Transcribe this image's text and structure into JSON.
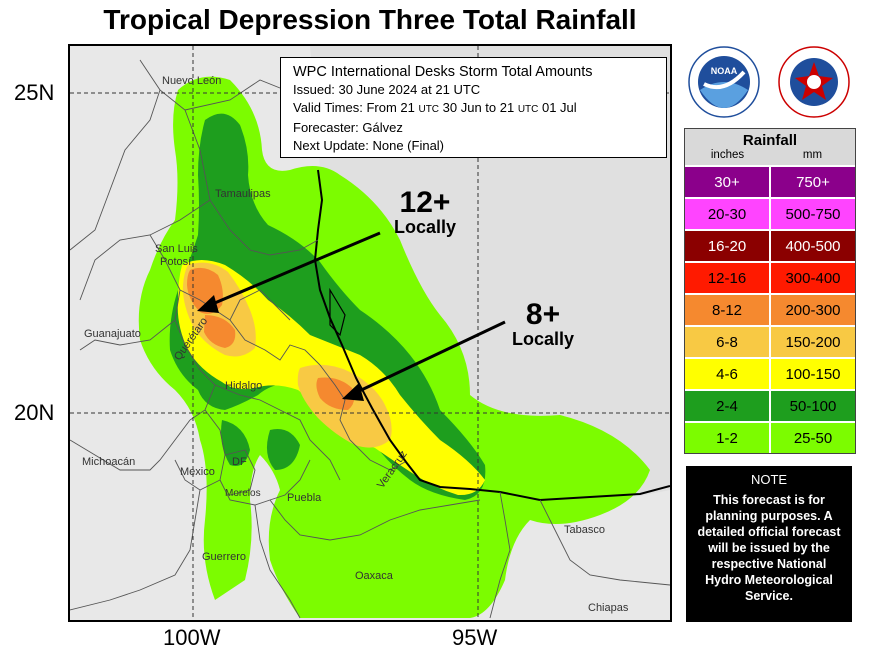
{
  "title": "Tropical Depression Three Total Rainfall",
  "axes": {
    "lat_labels": [
      "25N",
      "20N"
    ],
    "lon_labels": [
      "100W",
      "95W"
    ]
  },
  "info": {
    "header": "WPC International Desks Storm Total Amounts",
    "issued": "Issued:  30 June 2024 at 21 UTC",
    "valid_a": "Valid Times:  From 21 ",
    "valid_utc1": "UTC",
    "valid_b": " 30 Jun to  21 ",
    "valid_utc2": "UTC",
    "valid_c": " 01 Jul",
    "forecaster": "Forecaster: Gálvez",
    "next_update": "Next Update: None (Final)"
  },
  "annotations": [
    {
      "amount": "12+",
      "label": "Locally"
    },
    {
      "amount": "8+",
      "label": "Locally"
    }
  ],
  "places": {
    "nuevo_leon": "Nuevo León",
    "tamaulipas": "Tamaulipas",
    "san_luis": "San Luis",
    "potosi": "Potosí",
    "guanajuato": "Guanajuato",
    "queretaro": "Querétaro",
    "hidalgo": "Hidalgo",
    "michoacan": "Michoacán",
    "mexico": "Mexico",
    "df": "DF",
    "morelos": "Morelos",
    "puebla": "Puebla",
    "veracruz": "Veracruz",
    "tabasco": "Tabasco",
    "guerrero": "Guerrero",
    "oaxaca": "Oaxaca",
    "chiapas": "Chiapas"
  },
  "logos": {
    "noaa_text": "NOAA",
    "nws_ring": "NATIONAL WEATHER SERVICE",
    "noaa_ring": "NATIONAL OCEANIC AND ATMOSPHERIC ADMINISTRATION"
  },
  "legend": {
    "title": "Rainfall",
    "unit_in": "inches",
    "unit_mm": "mm",
    "rows": [
      {
        "in": "30+",
        "mm": "750+",
        "color": "#8b008b",
        "text": "#ffffff"
      },
      {
        "in": "20-30",
        "mm": "500-750",
        "color": "#ff44ff",
        "text": "#000000"
      },
      {
        "in": "16-20",
        "mm": "400-500",
        "color": "#8b0000",
        "text": "#ffffff"
      },
      {
        "in": "12-16",
        "mm": "300-400",
        "color": "#ff1a00",
        "text": "#000000"
      },
      {
        "in": "8-12",
        "mm": "200-300",
        "color": "#f5892f",
        "text": "#000000"
      },
      {
        "in": "6-8",
        "mm": "150-200",
        "color": "#f8c944",
        "text": "#000000"
      },
      {
        "in": "4-6",
        "mm": "100-150",
        "color": "#ffff00",
        "text": "#000000"
      },
      {
        "in": "2-4",
        "mm": "50-100",
        "color": "#1e9e1e",
        "text": "#000000"
      },
      {
        "in": "1-2",
        "mm": "25-50",
        "color": "#7cfc00",
        "text": "#000000"
      }
    ]
  },
  "note": {
    "title": "NOTE",
    "lines": [
      "This forecast is for",
      "planning purposes. A",
      "detailed official forecast",
      "will be issued by the",
      "respective National",
      "Hydro Meteorological",
      "Service."
    ]
  }
}
